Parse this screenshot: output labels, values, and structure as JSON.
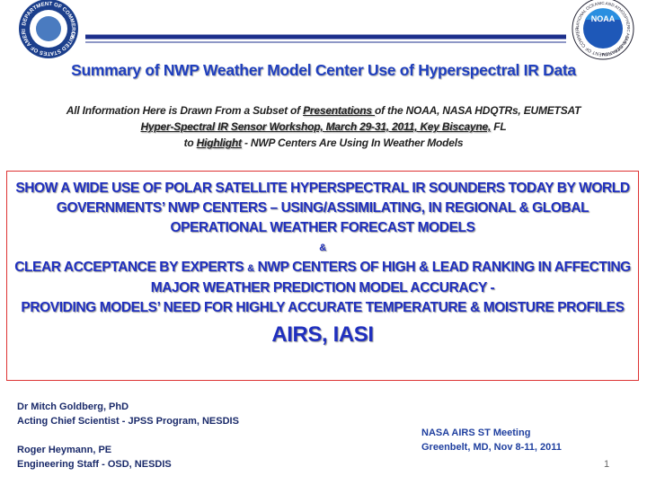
{
  "header": {
    "title": "Summary of NWP Weather Model Center Use of Hyperspectral IR Data",
    "left_seal": [
      "DEPARTMENT OF COMMERCE",
      "UNITED STATES OF AMERICA"
    ],
    "right_seal": [
      "NATIONAL OCEANIC AND ATMOSPHERIC ADMINISTRATION",
      "U.S. DEPARTMENT OF COMMERCE",
      "NOAA"
    ]
  },
  "intro": [
    [
      "All Information Here is Drawn From a Subset of ",
      "Presentations ",
      "of the NOAA, NASA HDQTRs, EUMETSAT"
    ],
    [
      "Hyper-Spectral IR Sensor Workshop, March 29-31, 2011, Key Biscayne,",
      " FL"
    ],
    [
      "to ",
      "Highlight",
      " - NWP Centers Are Using In Weather Models"
    ]
  ],
  "box": {
    "paragraphs": [
      [
        "SHOW A WIDE USE OF POLAR SATELLITE HYPERSPECTRAL IR SOUNDERS TODAY BY WORLD GOVERNMENTS’ NWP CENTERS – USING/ASSIMILATING, IN REGIONAL & GLOBAL OPERATIONAL WEATHER FORECAST MODELS"
      ],
      [
        "&"
      ],
      [
        "CLEAR ACCEPTANCE BY EXPERTS ",
        "&",
        " NWP CENTERS OF HIGH & LEAD RANKING IN AFFECTING MAJOR WEATHER PREDICTION MODEL ACCURACY -"
      ],
      [
        "PROVIDING MODELS",
        "’",
        " NEED FOR HIGHLY ACCURATE TEMPERATURE & MOISTURE PROFILES"
      ]
    ],
    "highlight": "AIRS, IASI"
  },
  "authors": [
    "Dr Mitch Goldberg, PhD",
    "Acting Chief Scientist -  JPSS Program, NESDIS",
    "Roger Heymann, PE",
    "Engineering Staff  -  OSD, NESDIS"
  ],
  "meeting": [
    "NASA AIRS ST Meeting",
    "Greenbelt, MD, Nov 8-11, 2011"
  ],
  "page_number": "1"
}
